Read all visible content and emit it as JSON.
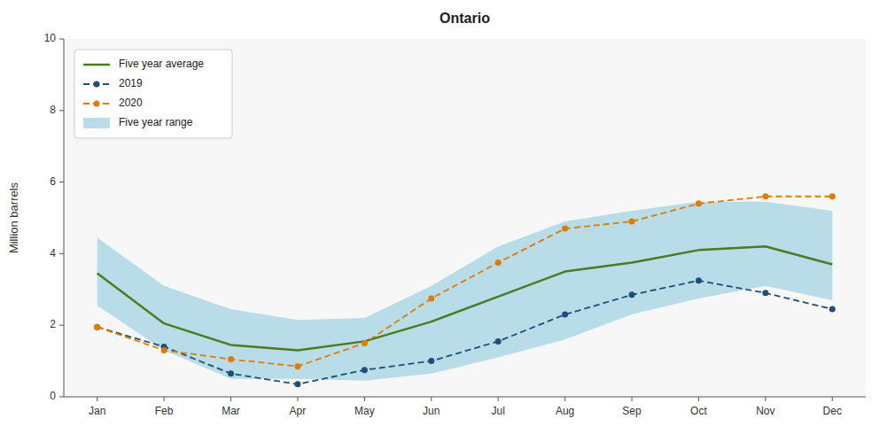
{
  "chart_data": {
    "type": "line",
    "title": "Ontario",
    "ylabel": "Million barrels",
    "categories": [
      "Jan",
      "Feb",
      "Mar",
      "Apr",
      "May",
      "Jun",
      "Jul",
      "Aug",
      "Sep",
      "Oct",
      "Nov",
      "Dec"
    ],
    "series": [
      {
        "name": "Five year average",
        "type": "line",
        "color": "#4a7c1f",
        "line_style": "solid",
        "values": [
          3.45,
          2.05,
          1.45,
          1.3,
          1.55,
          2.1,
          2.8,
          3.5,
          3.75,
          4.1,
          4.2,
          3.7
        ]
      },
      {
        "name": "2019",
        "type": "line",
        "color": "#1f4e79",
        "line_style": "dashed",
        "marker": "circle",
        "values": [
          1.95,
          1.4,
          0.65,
          0.35,
          0.75,
          1.0,
          1.55,
          2.3,
          2.85,
          3.25,
          2.9,
          2.45
        ]
      },
      {
        "name": "2020",
        "type": "line",
        "color": "#e07b00",
        "line_style": "dashed",
        "marker": "circle",
        "values": [
          1.95,
          1.3,
          1.05,
          0.85,
          1.5,
          2.75,
          3.75,
          4.7,
          4.9,
          5.4,
          5.6,
          5.6
        ]
      },
      {
        "name": "Five year range",
        "type": "range",
        "color": "#add8e6",
        "low": [
          2.55,
          1.3,
          0.5,
          0.5,
          0.45,
          0.65,
          1.1,
          1.6,
          2.3,
          2.75,
          3.1,
          2.7
        ],
        "high": [
          4.45,
          3.1,
          2.45,
          2.15,
          2.2,
          3.1,
          4.2,
          4.9,
          5.2,
          5.45,
          5.45,
          5.2
        ]
      }
    ],
    "ylim": [
      0,
      10
    ],
    "yticks": [
      0,
      2,
      4,
      6,
      8,
      10
    ],
    "grid": false,
    "legend": "upper-left"
  }
}
